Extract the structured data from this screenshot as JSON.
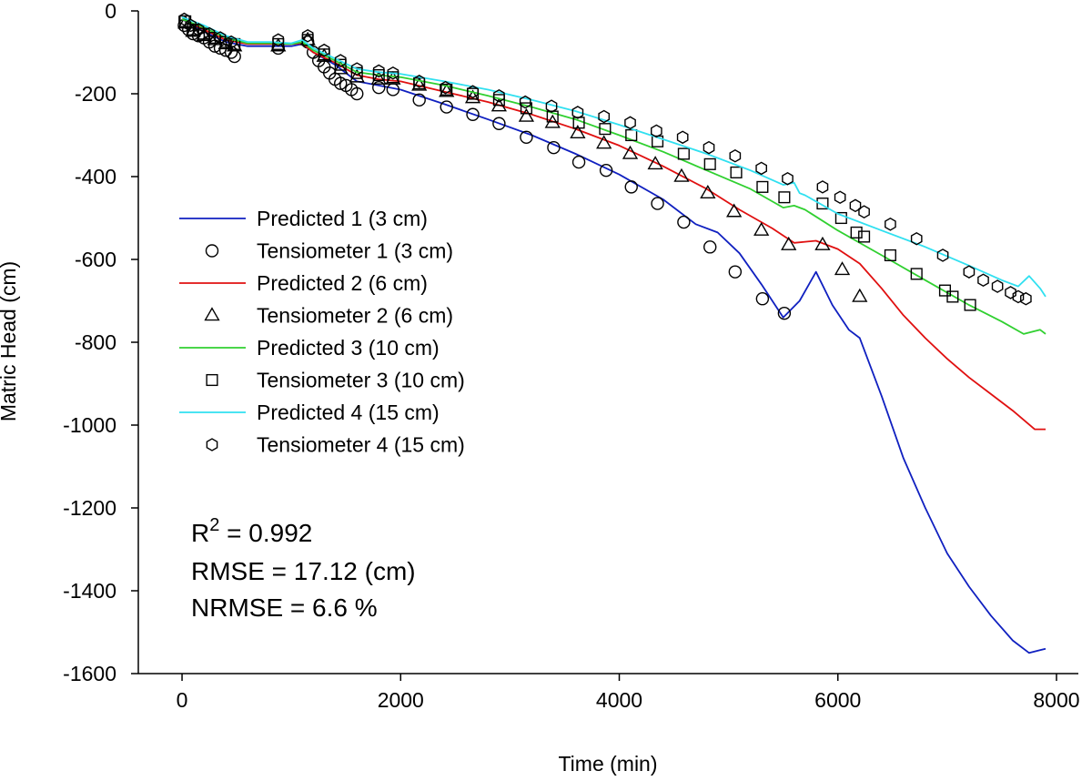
{
  "chart_data": {
    "type": "line",
    "title": "",
    "xlabel": "Time (min)",
    "ylabel": "Matric Head (cm)",
    "xlim": [
      -400,
      8200
    ],
    "ylim": [
      -1600,
      0
    ],
    "xticks": [
      0,
      2000,
      4000,
      6000,
      8000
    ],
    "yticks": [
      0,
      -200,
      -400,
      -600,
      -800,
      -1000,
      -1200,
      -1400,
      -1600
    ],
    "xtick_labels": [
      "0",
      "2000",
      "4000",
      "6000",
      "8000"
    ],
    "ytick_labels": [
      "0",
      "-200",
      "-400",
      "-600",
      "-800",
      "-1000",
      "-1200",
      "-1400",
      "-1600"
    ],
    "legend_position": "left",
    "series": [
      {
        "name": "Predicted 1 (3 cm)",
        "kind": "line",
        "color": "#1020c0",
        "x": [
          0,
          200,
          400,
          600,
          800,
          1000,
          1100,
          1200,
          1400,
          1600,
          1800,
          2000,
          2400,
          2800,
          3200,
          3600,
          4000,
          4400,
          4700,
          4900,
          5100,
          5300,
          5500,
          5650,
          5800,
          5950,
          6100,
          6200,
          6400,
          6600,
          6800,
          7000,
          7200,
          7400,
          7600,
          7750,
          7900
        ],
        "y": [
          -20,
          -50,
          -75,
          -85,
          -85,
          -85,
          -80,
          -100,
          -130,
          -170,
          -180,
          -190,
          -225,
          -262,
          -300,
          -345,
          -395,
          -455,
          -515,
          -535,
          -585,
          -660,
          -740,
          -700,
          -630,
          -710,
          -770,
          -790,
          -930,
          -1080,
          -1200,
          -1310,
          -1390,
          -1460,
          -1520,
          -1550,
          -1540
        ]
      },
      {
        "name": "Tensiometer 1 (3 cm)",
        "kind": "marker",
        "marker": "circle",
        "x": [
          20,
          60,
          100,
          150,
          200,
          250,
          300,
          350,
          400,
          450,
          480,
          880,
          1150,
          1200,
          1250,
          1300,
          1350,
          1400,
          1450,
          1500,
          1550,
          1600,
          1800,
          1930,
          2170,
          2420,
          2660,
          2900,
          3150,
          3400,
          3630,
          3880,
          4110,
          4350,
          4590,
          4830,
          5060,
          5310,
          5510
        ],
        "y": [
          -35,
          -45,
          -55,
          -60,
          -65,
          -75,
          -85,
          -90,
          -95,
          -100,
          -110,
          -90,
          -75,
          -100,
          -120,
          -135,
          -150,
          -165,
          -175,
          -180,
          -190,
          -200,
          -185,
          -190,
          -215,
          -232,
          -250,
          -272,
          -305,
          -330,
          -365,
          -385,
          -425,
          -465,
          -510,
          -570,
          -630,
          -695,
          -730
        ]
      },
      {
        "name": "Predicted 2 (6 cm)",
        "kind": "line",
        "color": "#e01010",
        "x": [
          0,
          200,
          400,
          600,
          800,
          1000,
          1100,
          1200,
          1400,
          1600,
          1800,
          2000,
          2400,
          2800,
          3200,
          3600,
          4000,
          4400,
          4800,
          5100,
          5400,
          5600,
          5800,
          6000,
          6200,
          6400,
          6600,
          6800,
          7000,
          7200,
          7400,
          7600,
          7800,
          7900
        ],
        "y": [
          -20,
          -45,
          -70,
          -80,
          -80,
          -80,
          -78,
          -100,
          -125,
          -155,
          -165,
          -170,
          -195,
          -220,
          -250,
          -285,
          -325,
          -375,
          -430,
          -480,
          -525,
          -560,
          -555,
          -575,
          -610,
          -670,
          -735,
          -790,
          -840,
          -885,
          -925,
          -965,
          -1010,
          -1010
        ]
      },
      {
        "name": "Tensiometer 2 (6 cm)",
        "kind": "marker",
        "marker": "triangle",
        "x": [
          30,
          100,
          200,
          300,
          400,
          480,
          880,
          1150,
          1300,
          1450,
          1600,
          1800,
          1930,
          2170,
          2420,
          2660,
          2900,
          3150,
          3390,
          3620,
          3860,
          4100,
          4330,
          4570,
          4810,
          5050,
          5300,
          5550,
          5860,
          6040,
          6200
        ],
        "y": [
          -30,
          -50,
          -60,
          -70,
          -80,
          -85,
          -85,
          -70,
          -110,
          -140,
          -160,
          -165,
          -165,
          -180,
          -195,
          -210,
          -230,
          -255,
          -270,
          -295,
          -320,
          -345,
          -370,
          -400,
          -440,
          -485,
          -530,
          -565,
          -565,
          -625,
          -690
        ]
      },
      {
        "name": "Predicted 3 (10 cm)",
        "kind": "line",
        "color": "#30d030",
        "x": [
          0,
          200,
          400,
          600,
          800,
          1000,
          1100,
          1200,
          1400,
          1600,
          1800,
          2000,
          2400,
          2800,
          3200,
          3600,
          4000,
          4400,
          4800,
          5200,
          5500,
          5600,
          5700,
          6000,
          6400,
          6800,
          7200,
          7500,
          7700,
          7850,
          7900
        ],
        "y": [
          -20,
          -40,
          -65,
          -78,
          -78,
          -80,
          -75,
          -95,
          -120,
          -148,
          -155,
          -160,
          -180,
          -205,
          -232,
          -262,
          -300,
          -340,
          -385,
          -430,
          -475,
          -470,
          -480,
          -530,
          -590,
          -650,
          -710,
          -750,
          -780,
          -770,
          -780
        ]
      },
      {
        "name": "Tensiometer 3 (10 cm)",
        "kind": "marker",
        "marker": "square",
        "x": [
          30,
          100,
          200,
          300,
          400,
          480,
          880,
          1150,
          1300,
          1450,
          1600,
          1800,
          1930,
          2170,
          2420,
          2660,
          2900,
          3150,
          3390,
          3630,
          3870,
          4110,
          4350,
          4590,
          4830,
          5070,
          5310,
          5510,
          5860,
          6030,
          6170,
          6240,
          6480,
          6720,
          6980,
          7050,
          7210
        ],
        "y": [
          -25,
          -45,
          -55,
          -65,
          -75,
          -80,
          -80,
          -70,
          -105,
          -130,
          -150,
          -155,
          -160,
          -175,
          -190,
          -200,
          -215,
          -235,
          -255,
          -270,
          -285,
          -300,
          -315,
          -345,
          -370,
          -390,
          -425,
          -450,
          -465,
          -500,
          -535,
          -545,
          -590,
          -635,
          -675,
          -690,
          -710
        ]
      },
      {
        "name": "Predicted 4 (15 cm)",
        "kind": "line",
        "color": "#30e0f0",
        "x": [
          0,
          200,
          400,
          600,
          800,
          1000,
          1100,
          1200,
          1400,
          1600,
          1800,
          2000,
          2400,
          2800,
          3200,
          3600,
          4000,
          4400,
          4800,
          5200,
          5500,
          5600,
          5650,
          5700,
          6000,
          6400,
          6800,
          7200,
          7500,
          7650,
          7750,
          7850,
          7900
        ],
        "y": [
          -15,
          -35,
          -60,
          -75,
          -75,
          -78,
          -70,
          -90,
          -115,
          -140,
          -148,
          -152,
          -170,
          -190,
          -215,
          -242,
          -275,
          -310,
          -345,
          -385,
          -420,
          -415,
          -440,
          -445,
          -490,
          -530,
          -570,
          -615,
          -650,
          -665,
          -640,
          -670,
          -690
        ]
      },
      {
        "name": "Tensiometer 4 (15 cm)",
        "kind": "marker",
        "marker": "hexagon",
        "x": [
          20,
          80,
          150,
          250,
          350,
          450,
          880,
          1150,
          1300,
          1450,
          1600,
          1800,
          1930,
          2170,
          2410,
          2660,
          2900,
          3140,
          3380,
          3620,
          3860,
          4100,
          4340,
          4580,
          4820,
          5060,
          5300,
          5540,
          5860,
          6020,
          6160,
          6240,
          6480,
          6720,
          6960,
          7200,
          7330,
          7460,
          7580,
          7650,
          7720
        ],
        "y": [
          -20,
          -35,
          -45,
          -55,
          -65,
          -75,
          -70,
          -60,
          -95,
          -120,
          -140,
          -145,
          -150,
          -170,
          -185,
          -195,
          -205,
          -220,
          -230,
          -245,
          -255,
          -270,
          -290,
          -305,
          -330,
          -350,
          -380,
          -405,
          -425,
          -450,
          -470,
          -485,
          -515,
          -550,
          -590,
          -630,
          -650,
          -665,
          -680,
          -690,
          -695
        ]
      }
    ],
    "annotations": {
      "r2_label": "R",
      "r2_sup": "2",
      "r2_value": " = 0.992",
      "rmse": "RMSE = 17.12 (cm)",
      "nrmse": "NRMSE = 6.6 %"
    }
  }
}
